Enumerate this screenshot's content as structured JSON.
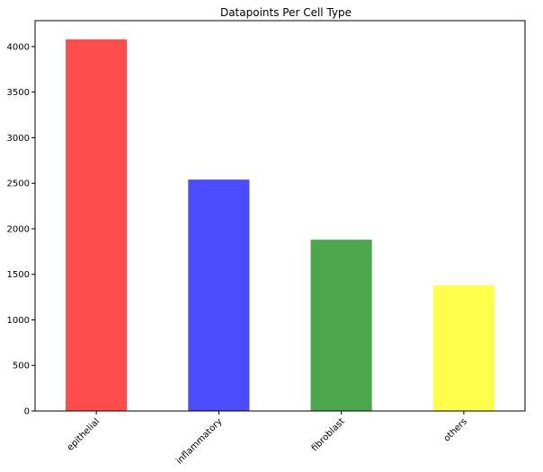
{
  "chart_data": {
    "type": "bar",
    "title": "Datapoints Per Cell Type",
    "xlabel": "",
    "ylabel": "",
    "categories": [
      "epithelial",
      "inflammatory",
      "fibroblast",
      "others"
    ],
    "values": [
      4080,
      2540,
      1880,
      1380
    ],
    "colors": [
      "#ff4c4c",
      "#4c4cff",
      "#4ca64c",
      "#ffff4c"
    ],
    "ylim": [
      0,
      4285
    ],
    "yticks": [
      0,
      500,
      1000,
      1500,
      2000,
      2500,
      3000,
      3500,
      4000
    ],
    "grid": false,
    "legend": "none"
  }
}
